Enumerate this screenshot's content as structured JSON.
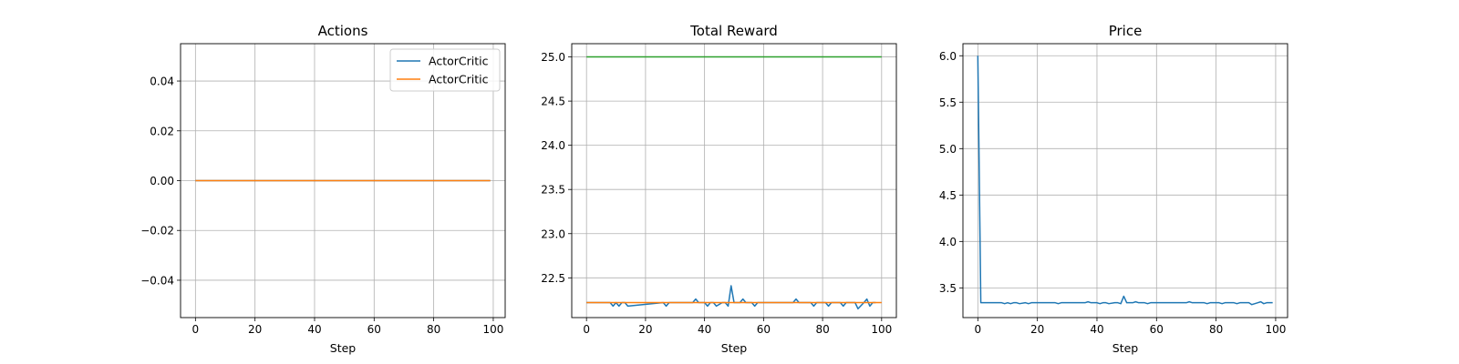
{
  "chart_data": [
    {
      "type": "line",
      "title": "Actions",
      "xlabel": "Step",
      "ylabel": "",
      "xlim": [
        -5,
        104
      ],
      "ylim": [
        -0.055,
        0.055
      ],
      "xticks": [
        0,
        20,
        40,
        60,
        80,
        100
      ],
      "yticks": [
        -0.04,
        -0.02,
        0.0,
        0.02,
        0.04
      ],
      "ytick_labels": [
        "−0.04",
        "−0.02",
        "0.00",
        "0.02",
        "0.04"
      ],
      "grid": true,
      "legend": {
        "placement": "top-right",
        "entries": [
          {
            "label": "ActorCritic",
            "color": "#1f77b4"
          },
          {
            "label": "ActorCritic",
            "color": "#ff7f0e"
          }
        ]
      },
      "series": [
        {
          "name": "ActorCritic",
          "color": "#1f77b4",
          "x": [
            0,
            99
          ],
          "y": [
            0,
            0
          ]
        },
        {
          "name": "ActorCritic",
          "color": "#ff7f0e",
          "x": [
            0,
            99
          ],
          "y": [
            0,
            0
          ]
        }
      ]
    },
    {
      "type": "line",
      "title": "Total Reward",
      "xlabel": "Step",
      "ylabel": "",
      "xlim": [
        -5,
        105
      ],
      "ylim": [
        22.05,
        25.15
      ],
      "xticks": [
        0,
        20,
        40,
        60,
        80,
        100
      ],
      "yticks": [
        22.5,
        23.0,
        23.5,
        24.0,
        24.5,
        25.0
      ],
      "ytick_labels": [
        "22.5",
        "23.0",
        "23.5",
        "24.0",
        "24.5",
        "25.0"
      ],
      "grid": true,
      "series": [
        {
          "color": "#1f77b4",
          "x": [
            0,
            8,
            9,
            10,
            11,
            12,
            13,
            14,
            26,
            27,
            28,
            36,
            37,
            38,
            40,
            41,
            42,
            43,
            44,
            46,
            47,
            48,
            49,
            50,
            52,
            53,
            54,
            56,
            57,
            58,
            70,
            71,
            72,
            76,
            77,
            78,
            81,
            82,
            83,
            86,
            87,
            88,
            91,
            92,
            94,
            95,
            96,
            97,
            98
          ],
          "y": [
            22.22,
            22.22,
            22.18,
            22.22,
            22.18,
            22.22,
            22.22,
            22.18,
            22.22,
            22.18,
            22.22,
            22.22,
            22.26,
            22.22,
            22.22,
            22.18,
            22.22,
            22.22,
            22.18,
            22.22,
            22.22,
            22.18,
            22.41,
            22.22,
            22.22,
            22.26,
            22.22,
            22.22,
            22.18,
            22.22,
            22.22,
            22.26,
            22.22,
            22.22,
            22.18,
            22.22,
            22.22,
            22.18,
            22.22,
            22.22,
            22.18,
            22.22,
            22.22,
            22.15,
            22.22,
            22.26,
            22.18,
            22.22,
            22.22
          ]
        },
        {
          "color": "#ff7f0e",
          "x": [
            0,
            100
          ],
          "y": [
            22.22,
            22.22
          ]
        },
        {
          "color": "#2ca02c",
          "x": [
            0,
            100
          ],
          "y": [
            25.0,
            25.0
          ]
        }
      ]
    },
    {
      "type": "line",
      "title": "Price",
      "xlabel": "Step",
      "ylabel": "",
      "xlim": [
        -5,
        104
      ],
      "ylim": [
        3.18,
        6.13
      ],
      "xticks": [
        0,
        20,
        40,
        60,
        80,
        100
      ],
      "yticks": [
        3.5,
        4.0,
        4.5,
        5.0,
        5.5,
        6.0
      ],
      "ytick_labels": [
        "3.5",
        "4.0",
        "4.5",
        "5.0",
        "5.5",
        "6.0"
      ],
      "grid": true,
      "series": [
        {
          "color": "#1f77b4",
          "x": [
            0,
            1,
            8,
            9,
            10,
            11,
            12,
            13,
            14,
            16,
            17,
            18,
            26,
            27,
            28,
            36,
            37,
            38,
            40,
            41,
            42,
            43,
            44,
            46,
            47,
            48,
            49,
            50,
            51,
            52,
            53,
            54,
            56,
            57,
            58,
            70,
            71,
            72,
            76,
            77,
            78,
            81,
            82,
            83,
            86,
            87,
            88,
            91,
            92,
            94,
            95,
            96,
            97,
            99
          ],
          "y": [
            6.0,
            3.34,
            3.34,
            3.33,
            3.34,
            3.33,
            3.34,
            3.34,
            3.33,
            3.34,
            3.33,
            3.34,
            3.34,
            3.33,
            3.34,
            3.34,
            3.35,
            3.34,
            3.34,
            3.33,
            3.34,
            3.34,
            3.33,
            3.34,
            3.34,
            3.33,
            3.41,
            3.34,
            3.34,
            3.34,
            3.35,
            3.34,
            3.34,
            3.33,
            3.34,
            3.34,
            3.35,
            3.34,
            3.34,
            3.33,
            3.34,
            3.34,
            3.33,
            3.34,
            3.34,
            3.33,
            3.34,
            3.34,
            3.32,
            3.34,
            3.35,
            3.33,
            3.34,
            3.34
          ]
        }
      ]
    }
  ]
}
